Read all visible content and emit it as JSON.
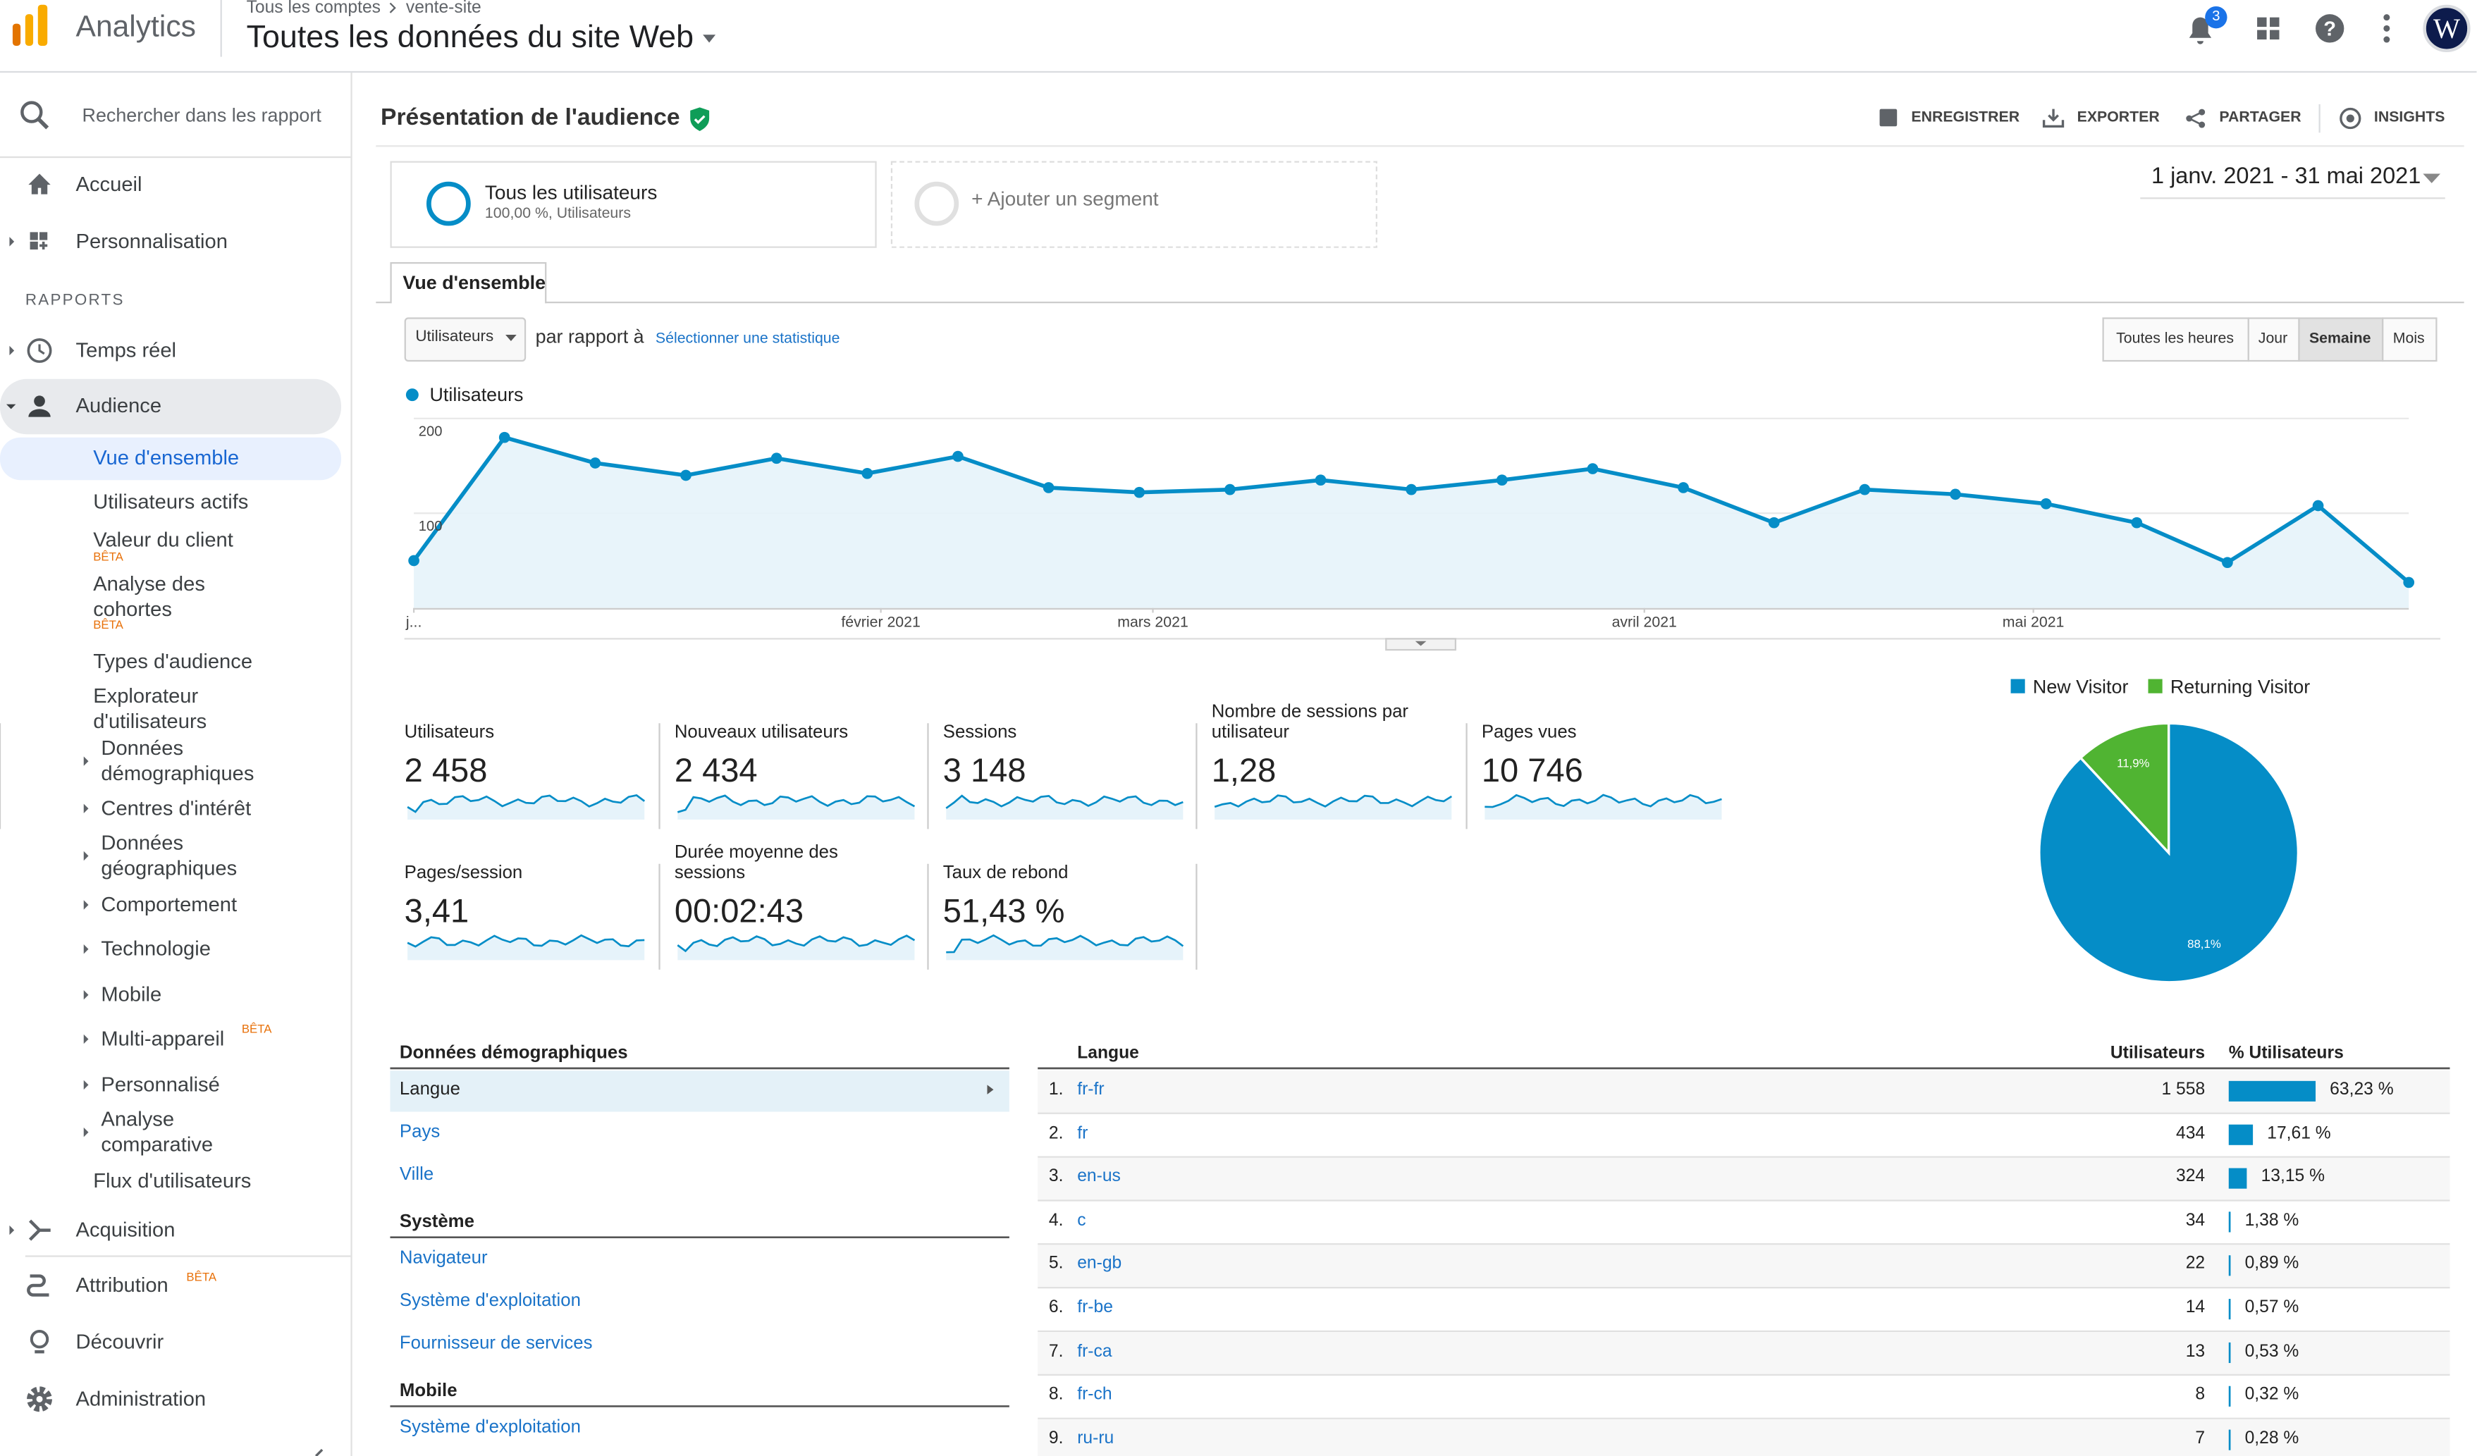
{
  "header": {
    "logo_text": "Analytics",
    "breadcrumb": [
      "Tous les comptes",
      "vente-site"
    ],
    "property": "Toutes les données du site Web",
    "notifications": "3",
    "avatar": "W"
  },
  "sidebar": {
    "search_placeholder": "Rechercher dans les rapport",
    "section": "RAPPORTS",
    "items": [
      {
        "label": "Accueil"
      },
      {
        "label": "Personnalisation"
      },
      {
        "label": "Temps réel"
      },
      {
        "label": "Audience"
      },
      {
        "label": "Vue d'ensemble"
      },
      {
        "label": "Utilisateurs actifs"
      },
      {
        "label": "Valeur du client",
        "badge": "BÊTA"
      },
      {
        "label": "Analyse des cohortes",
        "badge": "BÊTA"
      },
      {
        "label": "Types d'audience"
      },
      {
        "label": "Explorateur d'utilisateurs"
      },
      {
        "label": "Données démographiques"
      },
      {
        "label": "Centres d'intérêt"
      },
      {
        "label": "Données géographiques"
      },
      {
        "label": "Comportement"
      },
      {
        "label": "Technologie"
      },
      {
        "label": "Mobile"
      },
      {
        "label": "Multi-appareil",
        "badge": "BÊTA"
      },
      {
        "label": "Personnalisé"
      },
      {
        "label": "Analyse comparative"
      },
      {
        "label": "Flux d'utilisateurs"
      },
      {
        "label": "Acquisition"
      },
      {
        "label": "Attribution",
        "badge": "BÊTA"
      },
      {
        "label": "Découvrir"
      },
      {
        "label": "Administration"
      }
    ]
  },
  "report": {
    "title": "Présentation de l'audience",
    "actions": [
      "ENREGISTRER",
      "EXPORTER",
      "PARTAGER",
      "INSIGHTS"
    ],
    "segments": [
      {
        "name": "Tous les utilisateurs",
        "detail": "100,00 %, Utilisateurs"
      },
      {
        "name": "+ Ajouter un segment"
      }
    ],
    "date_range": "1 janv. 2021 - 31 mai 2021",
    "tab": "Vue d'ensemble",
    "metric_select": "Utilisateurs",
    "compare_label": "par rapport à",
    "compare_link": "Sélectionner une statistique",
    "granularity": [
      "Toutes les heures",
      "Jour",
      "Semaine",
      "Mois"
    ],
    "active_granularity": 2
  },
  "chart_data": [
    {
      "type": "line",
      "series": [
        {
          "name": "Utilisateurs",
          "color": "#058dc7",
          "values": [
            50,
            180,
            153,
            140,
            158,
            142,
            160,
            127,
            122,
            125,
            135,
            125,
            135,
            147,
            127,
            90,
            125,
            120,
            110,
            90,
            48,
            108,
            27
          ]
        }
      ],
      "xlim": [
        0,
        22
      ],
      "xticks": [
        {
          "value": 0,
          "label": "j..."
        },
        {
          "value": 5.15,
          "label": "février 2021"
        },
        {
          "value": 8.15,
          "label": "mars 2021"
        },
        {
          "value": 13.57,
          "label": "avril 2021"
        },
        {
          "value": 17.86,
          "label": "mai 2021"
        }
      ],
      "ylim": [
        0,
        200
      ],
      "yticks": [
        100,
        200
      ],
      "grid": true
    },
    {
      "type": "pie",
      "categories": [
        "New Visitor",
        "Returning Visitor"
      ],
      "values": [
        88.1,
        11.9
      ],
      "value_labels": [
        "88,1%",
        "11,9%"
      ],
      "colors": [
        "#058dc7",
        "#50b432"
      ],
      "legend": "top"
    }
  ],
  "kpis": [
    {
      "label": "Utilisateurs",
      "value": "2 458"
    },
    {
      "label": "Nouveaux utilisateurs",
      "value": "2 434"
    },
    {
      "label": "Sessions",
      "value": "3 148"
    },
    {
      "label": "Nombre de sessions par utilisateur",
      "value": "1,28"
    },
    {
      "label": "Pages vues",
      "value": "10 746"
    },
    {
      "label": "Pages/session",
      "value": "3,41"
    },
    {
      "label": "Durée moyenne des sessions",
      "value": "00:02:43"
    },
    {
      "label": "Taux de rebond",
      "value": "51,43 %"
    }
  ],
  "demographics": {
    "groups": [
      {
        "title": "Données démographiques",
        "items": [
          "Langue",
          "Pays",
          "Ville"
        ]
      },
      {
        "title": "Système",
        "items": [
          "Navigateur",
          "Système d'exploitation",
          "Fournisseur de services"
        ]
      },
      {
        "title": "Mobile",
        "items": [
          "Système d'exploitation"
        ]
      }
    ]
  },
  "language_table": {
    "headers": [
      "Langue",
      "Utilisateurs",
      "% Utilisateurs"
    ],
    "rows": [
      {
        "rank": "1.",
        "language": "fr-fr",
        "users": "1 558",
        "share": 63.23,
        "share_label": "63,23 %"
      },
      {
        "rank": "2.",
        "language": "fr",
        "users": "434",
        "share": 17.61,
        "share_label": "17,61 %"
      },
      {
        "rank": "3.",
        "language": "en-us",
        "users": "324",
        "share": 13.15,
        "share_label": "13,15 %"
      },
      {
        "rank": "4.",
        "language": "c",
        "users": "34",
        "share": 1.38,
        "share_label": "1,38 %"
      },
      {
        "rank": "5.",
        "language": "en-gb",
        "users": "22",
        "share": 0.89,
        "share_label": "0,89 %"
      },
      {
        "rank": "6.",
        "language": "fr-be",
        "users": "14",
        "share": 0.57,
        "share_label": "0,57 %"
      },
      {
        "rank": "7.",
        "language": "fr-ca",
        "users": "13",
        "share": 0.53,
        "share_label": "0,53 %"
      },
      {
        "rank": "8.",
        "language": "fr-ch",
        "users": "8",
        "share": 0.32,
        "share_label": "0,32 %"
      },
      {
        "rank": "9.",
        "language": "ru-ru",
        "users": "7",
        "share": 0.28,
        "share_label": "0,28 %"
      }
    ]
  }
}
